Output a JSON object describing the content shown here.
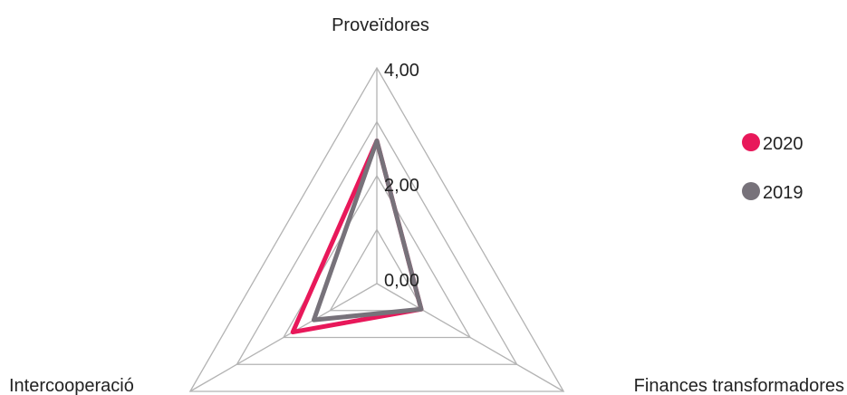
{
  "chart_data": {
    "type": "radar",
    "axes": [
      "Proveïdores",
      "Finances transformadores",
      "Intercooperació"
    ],
    "ticks": [
      "0,00",
      "2,00",
      "4,00"
    ],
    "rlim": [
      0,
      4
    ],
    "grid": true,
    "legend_position": "right",
    "series": [
      {
        "name": "2020",
        "color": "#e8185a",
        "values": [
          2.65,
          0.95,
          1.8
        ]
      },
      {
        "name": "2019",
        "color": "#77727a",
        "values": [
          2.65,
          0.95,
          1.35
        ]
      }
    ]
  }
}
